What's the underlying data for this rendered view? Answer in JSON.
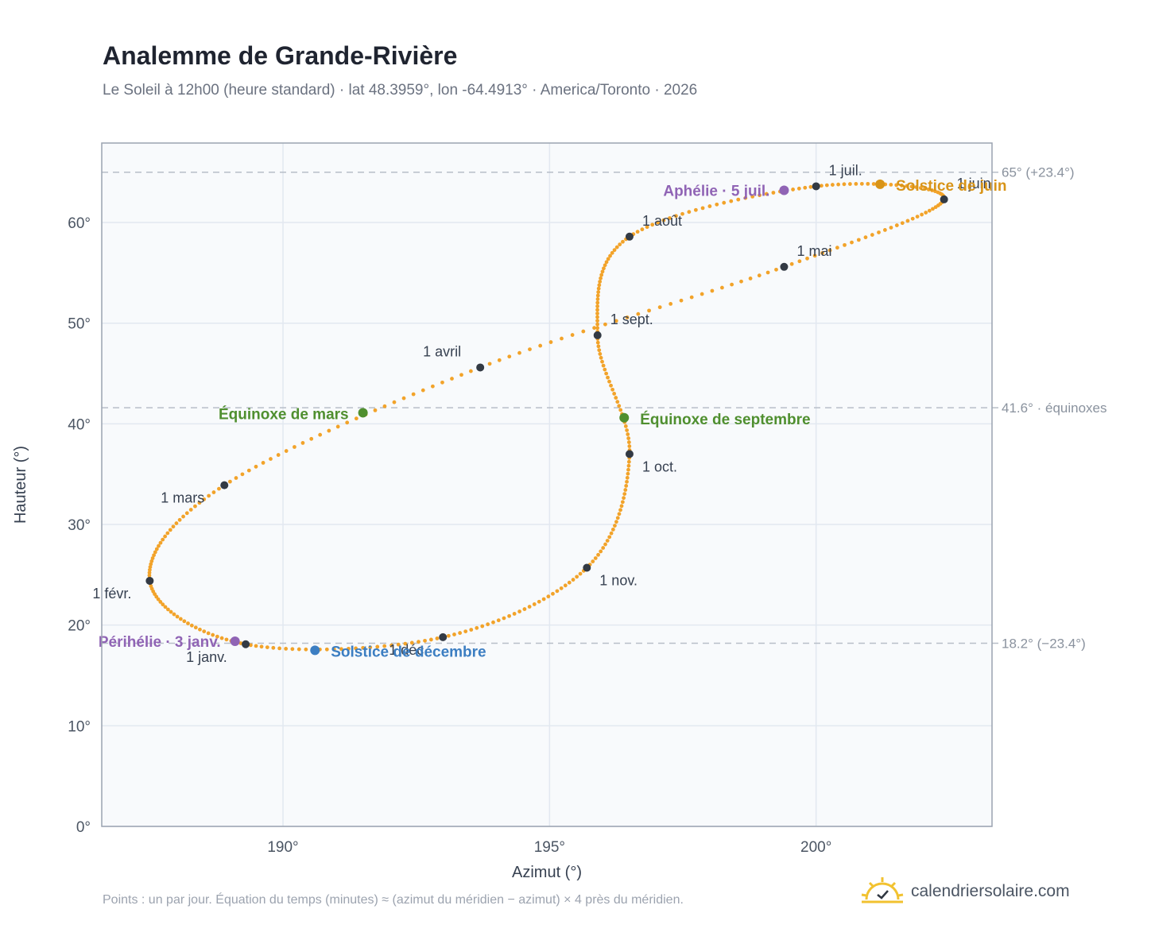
{
  "header": {
    "title": "Analemme de Grande-Rivière",
    "subtitle": "Le Soleil à 12h00 (heure standard) · lat 48.3959°, lon -64.4913° · America/Toronto · 2026"
  },
  "footer": {
    "note": "Points : un par jour. Équation du temps (minutes) ≈ (azimut du méridien − azimut) × 4 près du méridien.",
    "brand": "calendriersolaire.com",
    "brand_icon": "sun-check-icon"
  },
  "colors": {
    "curve": "#f2a32a",
    "month_marker": "#333a44",
    "equinox": "#4f8f2f",
    "june_solstice": "#d89418",
    "december_solstice": "#3c7ec2",
    "perihelion_aphelion": "#9064b5",
    "plot_background": "#f8fafc",
    "grid": "#e2e8f0",
    "reference_line": "#b7bec8",
    "axis_text": "#4b5563"
  },
  "chart_data": {
    "type": "scatter",
    "xlabel": "Azimut (°)",
    "ylabel": "Hauteur (°)",
    "xlim": [
      186.6,
      203.3
    ],
    "ylim": [
      0,
      67.9
    ],
    "x_ticks": [
      190,
      195,
      200
    ],
    "x_tick_labels": [
      "190°",
      "195°",
      "200°"
    ],
    "y_ticks": [
      0,
      10,
      20,
      30,
      40,
      50,
      60
    ],
    "y_tick_labels": [
      "0°",
      "10°",
      "20°",
      "30°",
      "40°",
      "50°",
      "60°"
    ],
    "grid": true,
    "reference_lines": [
      {
        "y": 65.0,
        "label": "65° (+23.4°)"
      },
      {
        "y": 41.6,
        "label": "41.6° · équinoxes"
      },
      {
        "y": 18.2,
        "label": "18.2° (−23.4°)"
      }
    ],
    "months": [
      {
        "label": "1 janv.",
        "az": 189.3,
        "alt": 18.1
      },
      {
        "label": "1 févr.",
        "az": 187.5,
        "alt": 24.4
      },
      {
        "label": "1 mars",
        "az": 188.9,
        "alt": 33.9
      },
      {
        "label": "1 avril",
        "az": 193.7,
        "alt": 45.6
      },
      {
        "label": "1 mai",
        "az": 199.4,
        "alt": 55.6
      },
      {
        "label": "1 juin",
        "az": 202.4,
        "alt": 62.3
      },
      {
        "label": "1 juil.",
        "az": 200.0,
        "alt": 63.6
      },
      {
        "label": "1 août",
        "az": 196.5,
        "alt": 58.6
      },
      {
        "label": "1 sept.",
        "az": 195.9,
        "alt": 48.8
      },
      {
        "label": "1 oct.",
        "az": 196.5,
        "alt": 37.0
      },
      {
        "label": "1 nov.",
        "az": 195.7,
        "alt": 25.7
      },
      {
        "label": "1 déc.",
        "az": 193.0,
        "alt": 18.8
      }
    ],
    "events": [
      {
        "label": "Équinoxe de mars",
        "az": 191.5,
        "alt": 41.1,
        "kind": "equinox"
      },
      {
        "label": "Équinoxe de septembre",
        "az": 196.4,
        "alt": 40.6,
        "kind": "equinox"
      },
      {
        "label": "Solstice de juin",
        "az": 201.2,
        "alt": 63.8,
        "kind": "june_solstice"
      },
      {
        "label": "Solstice de décembre",
        "az": 190.6,
        "alt": 17.5,
        "kind": "december_solstice"
      },
      {
        "label": "Périhélie · 3 janv.",
        "az": 189.1,
        "alt": 18.4,
        "kind": "perihelion_aphelion"
      },
      {
        "label": "Aphélie · 5 juil.",
        "az": 199.4,
        "alt": 63.2,
        "kind": "perihelion_aphelion"
      }
    ]
  }
}
